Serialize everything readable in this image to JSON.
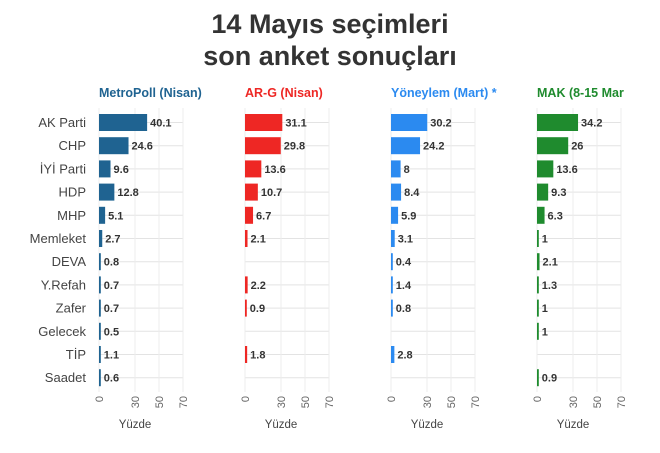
{
  "title_line1": "14 Mayıs seçimleri",
  "title_line2": "son anket sonuçları",
  "chart_data": {
    "type": "bar",
    "orientation": "horizontal",
    "categories": [
      "AK Parti",
      "CHP",
      "İYİ Parti",
      "HDP",
      "MHP",
      "Memleket",
      "DEVA",
      "Y.Refah",
      "Zafer",
      "Gelecek",
      "TİP",
      "Saadet"
    ],
    "xlabel": "Yüzde",
    "xlim": [
      0,
      70
    ],
    "xticks": [
      "0",
      "30",
      "50",
      "70"
    ],
    "grid": true,
    "series": [
      {
        "name": "MetroPoll (Nisan)",
        "color": "#1f6391",
        "values": [
          40.1,
          24.6,
          9.6,
          12.8,
          5.1,
          2.7,
          0.8,
          0.7,
          0.7,
          0.5,
          1.1,
          0.6
        ],
        "labels": [
          "40.1",
          "24.6",
          "9.6",
          "12.8",
          "5.1",
          "2.7",
          "0.8",
          "0.7",
          "0.7",
          "0.5",
          "1.1",
          "0.6"
        ]
      },
      {
        "name": "AR-G (Nisan)",
        "color": "#ee2724",
        "values": [
          31.1,
          29.8,
          13.6,
          10.7,
          6.7,
          2.1,
          null,
          2.2,
          0.9,
          null,
          1.8,
          null
        ],
        "labels": [
          "31.1",
          "29.8",
          "13.6",
          "10.7",
          "6.7",
          "2.1",
          null,
          "2.2",
          "0.9",
          null,
          "1.8",
          null
        ]
      },
      {
        "name": "Yöneylem (Mart) *",
        "color": "#2b8af0",
        "values": [
          30.2,
          24.2,
          8,
          8.4,
          5.9,
          3.1,
          0.4,
          1.4,
          0.8,
          null,
          2.8,
          null
        ],
        "labels": [
          "30.2",
          "24.2",
          "8",
          "8.4",
          "5.9",
          "3.1",
          "0.4",
          "1.4",
          "0.8",
          null,
          "2.8",
          null
        ]
      },
      {
        "name": "MAK (8-15 Mar",
        "color": "#1f8b2e",
        "values": [
          34.2,
          26,
          13.6,
          9.3,
          6.3,
          1,
          2.1,
          1.3,
          1,
          1,
          null,
          0.9
        ],
        "labels": [
          "34.2",
          "26",
          "13.6",
          "9.3",
          "6.3",
          "1",
          "2.1",
          "1.3",
          "1",
          "1",
          null,
          "0.9"
        ]
      }
    ]
  }
}
